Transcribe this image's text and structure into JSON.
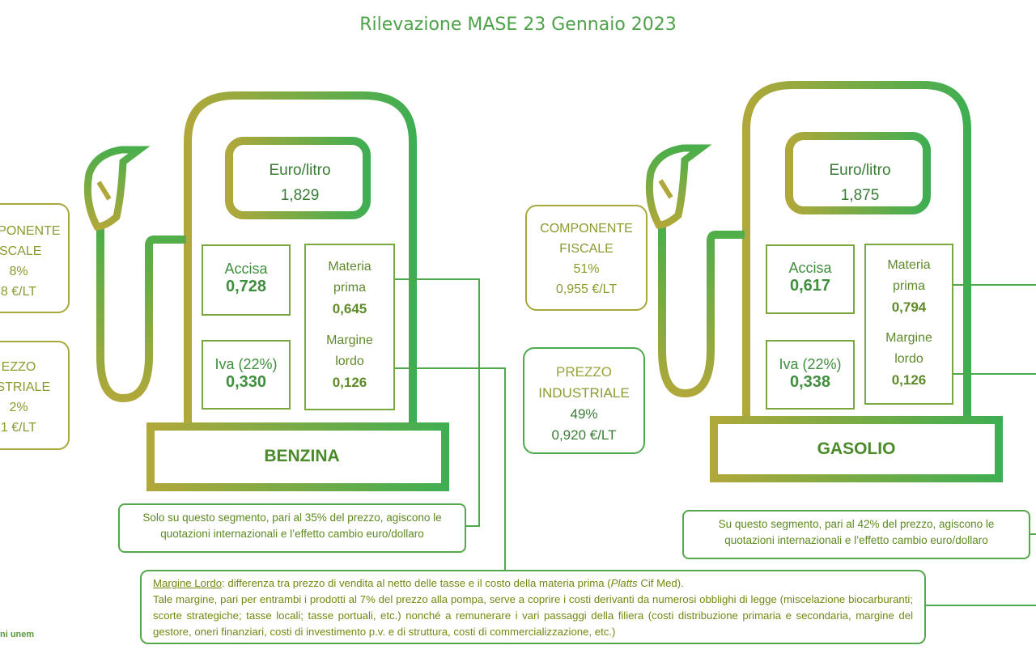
{
  "title": "Rilevazione MASE 23 Gennaio 2023",
  "colors": {
    "olive": "#a8a83c",
    "green": "#4caa4c",
    "text_green": "#3f8f3f"
  },
  "benzina": {
    "name": "BENZINA",
    "euro_label": "Euro/litro",
    "euro_value": "1,829",
    "accisa_label": "Accisa",
    "accisa_value": "0,728",
    "iva_label": "Iva (22%)",
    "iva_value": "0,330",
    "materia_label_1": "Materia",
    "materia_label_2": "prima",
    "materia_value": "0,645",
    "margine_label_1": "Margine",
    "margine_label_2": "lordo",
    "margine_value": "0,126",
    "fiscale_line1": "OMPONENTE",
    "fiscale_line2": "ISCALE",
    "fiscale_pct": "8%",
    "fiscale_value": "8 €/LT",
    "industriale_line1": "EZZO",
    "industriale_line2": "USTRIALE",
    "industriale_pct": "2%",
    "industriale_value": "1 €/LT",
    "note_line1": "Solo su questo segmento, pari al 35% del prezzo, agiscono le",
    "note_line2": "quotazioni internazionali e l’effetto cambio euro/dollaro"
  },
  "gasolio": {
    "name": "GASOLIO",
    "euro_label": "Euro/litro",
    "euro_value": "1,875",
    "accisa_label": "Accisa",
    "accisa_value": "0,617",
    "iva_label": "Iva (22%)",
    "iva_value": "0,338",
    "materia_label_1": "Materia",
    "materia_label_2": "prima",
    "materia_value": "0,794",
    "margine_label_1": "Margine",
    "margine_label_2": "lordo",
    "margine_value": "0,126",
    "fiscale_line1": "COMPONENTE",
    "fiscale_line2": "FISCALE",
    "fiscale_pct": "51%",
    "fiscale_value": "0,955 €/LT",
    "industriale_line1": "PREZZO",
    "industriale_line2": "INDUSTRIALE",
    "industriale_pct": "49%",
    "industriale_value": "0,920 €/LT",
    "note_line1": "Su questo segmento, pari al 42% del prezzo, agiscono le",
    "note_line2": "quotazioni internazionali e l’effetto cambio euro/dollaro"
  },
  "margine_box": {
    "term": "Margine Lordo",
    "line1_rest": ": differenza tra prezzo di vendita al netto delle tasse e il costo della materia prima (",
    "platts": "Platts",
    "line1_end": " Cif Med).",
    "body": "Tale margine, pari  per entrambi i prodotti al 7% del prezzo alla pompa, serve a coprire i costi derivanti da numerosi obblighi di legge (miscelazione biocarburanti; scorte strategiche; tasse locali; tasse portuali, etc.) nonché a remunerare i vari passaggi della filiera (costi distribuzione primaria e secondaria, margine del gestore, oneri finanziari, costi di investimento p.v. e di struttura, costi di commercializzazione, etc.)"
  },
  "footer_source": "ni unem"
}
